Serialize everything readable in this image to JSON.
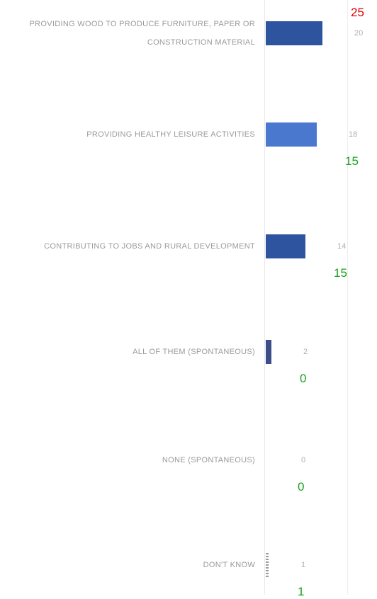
{
  "chart_data": {
    "type": "bar",
    "orientation": "horizontal",
    "categories": [
      "PROVIDING WOOD TO PRODUCE FURNITURE, PAPER OR CONSTRUCTION MATERIAL",
      "PROVIDING HEALTHY LEISURE ACTIVITIES",
      "CONTRIBUTING TO JOBS AND RURAL DEVELOPMENT",
      "ALL OF THEM (SPONTANEOUS)",
      "NONE (SPONTANEOUS)",
      "DON'T KNOW"
    ],
    "values": [
      20,
      18,
      14,
      2,
      0,
      1
    ],
    "colors": [
      "#2e54a0",
      "#4a78cf",
      "#2e54a0",
      "#3a4f8a",
      "#2e54a0",
      "#9a9a9a"
    ],
    "xlim": [
      0,
      20
    ],
    "annotations": [
      {
        "text": "25",
        "color": "#e00000"
      },
      {
        "text": "15",
        "color": "#1aa01a"
      },
      {
        "text": "15",
        "color": "#1aa01a"
      },
      {
        "text": "0",
        "color": "#1aa01a"
      },
      {
        "text": "0",
        "color": "#1aa01a"
      },
      {
        "text": "1",
        "color": "#1aa01a"
      }
    ]
  }
}
